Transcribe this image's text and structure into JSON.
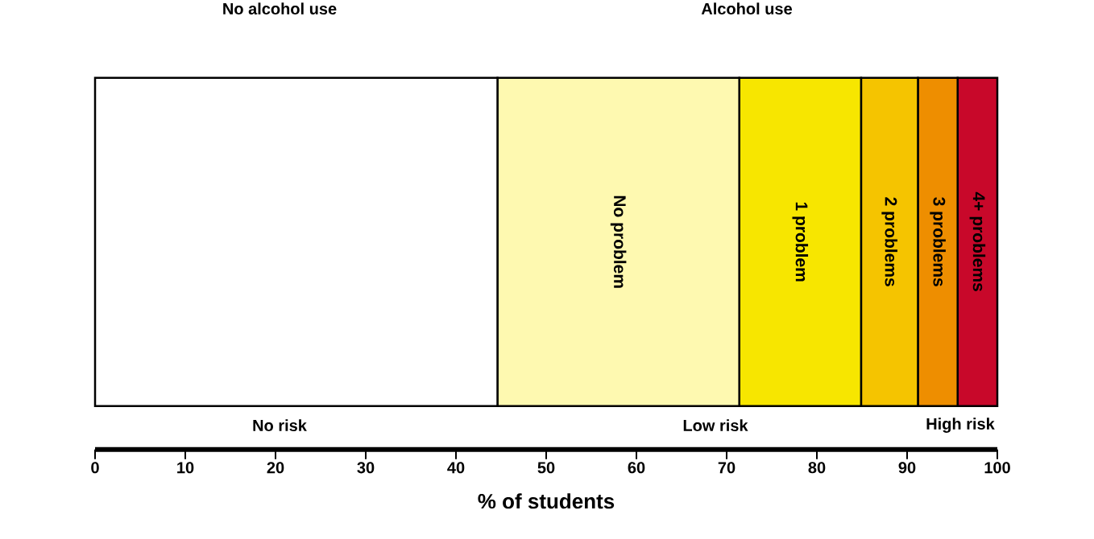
{
  "chart_data": {
    "type": "bar",
    "orientation": "horizontal",
    "stacked": true,
    "categories": [
      null
    ],
    "series": [
      {
        "color": "#ffffff",
        "values": [
          44.6
        ]
      },
      {
        "name": "No problem",
        "color": "#fef9b0",
        "values": [
          26.8
        ]
      },
      {
        "name": "1 problem",
        "color": "#f7e600",
        "values": [
          13.5
        ]
      },
      {
        "name": "2 problems",
        "color": "#f5c400",
        "values": [
          6.3
        ]
      },
      {
        "name": "3 problems",
        "color": "#ee8e00",
        "values": [
          4.4
        ]
      },
      {
        "name": "4+ problems",
        "color": "#c8082a",
        "values": [
          4.4
        ]
      }
    ],
    "xlim": [
      0,
      100
    ],
    "xticks": [
      0,
      10,
      20,
      30,
      40,
      50,
      60,
      70,
      80,
      90,
      100
    ],
    "xlabel": "% of students",
    "annotations": [
      "No alcohol use",
      "Alcohol use",
      "No risk",
      "Low risk",
      "High risk"
    ]
  }
}
